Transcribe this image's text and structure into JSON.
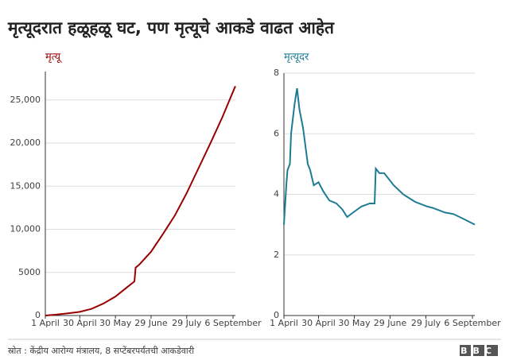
{
  "title": "मृत्यूदरात हळूहळू घट, पण मृत्यूचे आकडे वाढत आहेत",
  "source": "स्रोत : केंद्रीय आरोग्य मंत्रालय, 8 सप्टेंबरपर्यंतची आकडेवारी",
  "logo": "BBC",
  "chart_data": [
    {
      "type": "line",
      "title": "मृत्यू",
      "x": [
        0,
        9,
        19,
        29,
        39,
        49,
        59,
        69,
        75,
        76,
        79,
        89,
        99,
        109,
        119,
        129,
        139,
        149,
        159,
        160
      ],
      "series": [
        {
          "name": "मृत्यू",
          "color": "#990000",
          "values": [
            0,
            100,
            250,
            430,
            780,
            1400,
            2200,
            3300,
            3950,
            5550,
            5900,
            7400,
            9450,
            11600,
            14200,
            17100,
            20000,
            23000,
            26300,
            26600
          ]
        }
      ],
      "xlim": [
        0,
        160
      ],
      "xticks": [
        {
          "value": 0,
          "label": "1 April"
        },
        {
          "value": 29,
          "label": "30 April"
        },
        {
          "value": 59,
          "label": "30 May"
        },
        {
          "value": 89,
          "label": "29 June"
        },
        {
          "value": 119,
          "label": "29 July"
        },
        {
          "value": 158,
          "label": "6 September"
        }
      ],
      "ylim": [
        0,
        28300
      ],
      "yticks": [
        0,
        5000,
        {
          "value": 10000,
          "label": "10,000"
        },
        {
          "value": 15000,
          "label": "15,000"
        },
        {
          "value": 20000,
          "label": "20,000"
        },
        {
          "value": 25000,
          "label": "25,000"
        }
      ],
      "grid": true
    },
    {
      "type": "line",
      "title": "मृत्यूदर",
      "x": [
        0,
        2,
        3,
        5,
        6,
        9,
        11,
        13,
        16,
        20,
        22,
        25,
        29,
        33,
        38,
        44,
        49,
        53,
        58,
        65,
        72,
        76,
        77,
        80,
        84,
        87,
        92,
        100,
        110,
        120,
        125,
        135,
        142,
        150,
        160
      ],
      "series": [
        {
          "name": "मृत्यूदर",
          "color": "#1d7c93",
          "values": [
            3.0,
            4.3,
            4.8,
            5.0,
            6.0,
            7.0,
            7.5,
            6.8,
            6.2,
            5.0,
            4.8,
            4.3,
            4.4,
            4.1,
            3.8,
            3.7,
            3.5,
            3.25,
            3.4,
            3.6,
            3.7,
            3.7,
            4.85,
            4.7,
            4.7,
            4.55,
            4.3,
            4.0,
            3.75,
            3.6,
            3.55,
            3.4,
            3.35,
            3.2,
            3.0
          ]
        }
      ],
      "xlim": [
        0,
        160
      ],
      "xticks": [
        {
          "value": 0,
          "label": "1 April"
        },
        {
          "value": 29,
          "label": "30 April"
        },
        {
          "value": 59,
          "label": "30 May"
        },
        {
          "value": 89,
          "label": "29 June"
        },
        {
          "value": 119,
          "label": "29 July"
        },
        {
          "value": 158,
          "label": "6 September"
        }
      ],
      "ylim": [
        0,
        8
      ],
      "yticks": [
        0,
        2,
        4,
        6,
        8
      ],
      "grid": true
    }
  ]
}
